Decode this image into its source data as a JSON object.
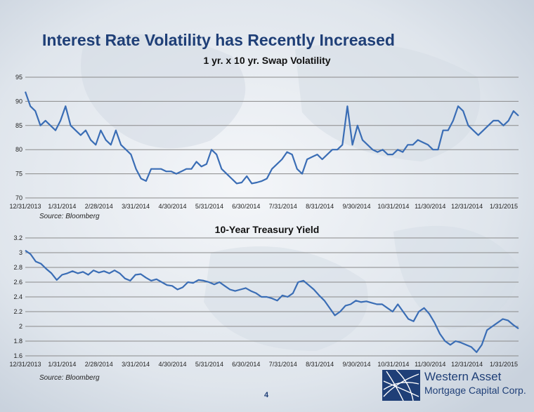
{
  "title": "Interest Rate Volatility has Recently Increased",
  "page_number": "4",
  "logo": {
    "line1": "Western Asset",
    "line2": "Mortgage Capital Corp."
  },
  "colors": {
    "title": "#1f3f77",
    "series": "#3a6db5",
    "grid": "#8a8a8a"
  },
  "chart_data": [
    {
      "type": "line",
      "title": "1 yr. x 10 yr. Swap Volatility",
      "source": "Source: Bloomberg",
      "x_ticks": [
        "12/31/2013",
        "1/31/2014",
        "2/28/2014",
        "3/31/2014",
        "4/30/2014",
        "5/31/2014",
        "6/30/2014",
        "7/31/2014",
        "8/31/2014",
        "9/30/2014",
        "10/31/2014",
        "11/30/2014",
        "12/31/2014",
        "1/31/2015"
      ],
      "y_ticks": [
        "95",
        "90",
        "85",
        "80",
        "75",
        "70"
      ],
      "ylim": [
        70,
        95
      ],
      "series": [
        {
          "values": [
            92,
            89,
            88,
            85,
            86,
            85,
            84,
            86,
            89,
            85,
            84,
            83,
            84,
            82,
            81,
            84,
            82,
            81,
            84,
            81,
            80,
            79,
            76,
            74,
            73.5,
            76,
            76,
            76,
            75.5,
            75.5,
            75,
            75.5,
            76,
            76,
            77.5,
            76.5,
            77,
            80,
            79,
            76,
            75,
            74,
            73,
            73.2,
            74.5,
            73,
            73.2,
            73.5,
            74,
            76,
            77,
            78,
            79.5,
            79,
            76,
            75,
            78,
            78.5,
            79,
            78,
            79,
            80,
            80,
            81,
            89,
            81,
            85,
            82,
            81,
            80,
            79.5,
            80,
            79,
            79,
            80,
            79.5,
            81,
            81,
            82,
            81.5,
            81,
            80,
            80,
            84,
            84,
            86,
            89,
            88,
            85,
            84,
            83,
            84,
            85,
            86,
            86,
            85,
            86,
            88,
            87
          ]
        }
      ]
    },
    {
      "type": "line",
      "title": "10-Year Treasury Yield",
      "source": "Source: Bloomberg",
      "x_ticks": [
        "12/31/2013",
        "1/31/2014",
        "2/28/2014",
        "3/31/2014",
        "4/30/2014",
        "5/31/2014",
        "6/30/2014",
        "7/31/2014",
        "8/31/2014",
        "9/30/2014",
        "10/31/2014",
        "11/30/2014",
        "12/31/2014",
        "1/31/2015"
      ],
      "y_ticks": [
        "3.2",
        "3",
        "2.8",
        "2.6",
        "2.4",
        "2.2",
        "2",
        "1.8",
        "1.6"
      ],
      "ylim": [
        1.6,
        3.2
      ],
      "series": [
        {
          "values": [
            3.03,
            2.98,
            2.88,
            2.85,
            2.78,
            2.72,
            2.63,
            2.7,
            2.72,
            2.75,
            2.72,
            2.74,
            2.7,
            2.76,
            2.73,
            2.75,
            2.72,
            2.76,
            2.72,
            2.65,
            2.62,
            2.7,
            2.71,
            2.66,
            2.62,
            2.64,
            2.6,
            2.56,
            2.55,
            2.5,
            2.53,
            2.6,
            2.59,
            2.63,
            2.62,
            2.6,
            2.57,
            2.6,
            2.55,
            2.5,
            2.48,
            2.5,
            2.52,
            2.48,
            2.45,
            2.4,
            2.4,
            2.38,
            2.35,
            2.42,
            2.4,
            2.45,
            2.6,
            2.62,
            2.56,
            2.5,
            2.42,
            2.35,
            2.25,
            2.15,
            2.2,
            2.28,
            2.3,
            2.35,
            2.33,
            2.34,
            2.32,
            2.3,
            2.3,
            2.25,
            2.2,
            2.3,
            2.2,
            2.1,
            2.07,
            2.2,
            2.25,
            2.17,
            2.05,
            1.9,
            1.8,
            1.75,
            1.8,
            1.78,
            1.75,
            1.72,
            1.65,
            1.75,
            1.95,
            2.0,
            2.05,
            2.1,
            2.08,
            2.02,
            1.97
          ]
        }
      ]
    }
  ]
}
